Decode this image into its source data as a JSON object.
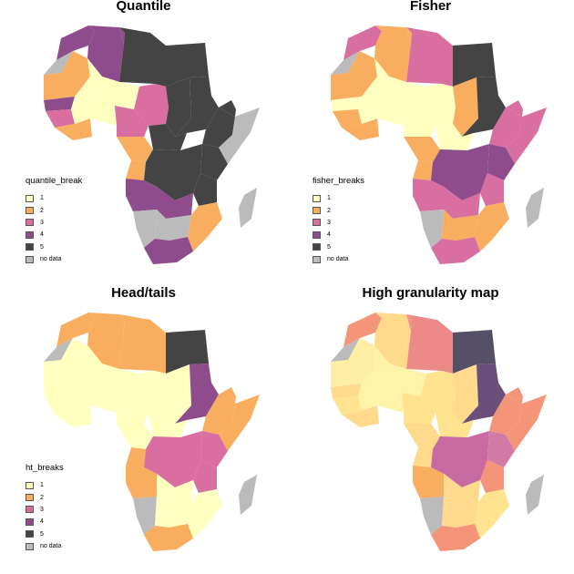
{
  "panels": [
    {
      "title": "Quantile",
      "legend_title": "quantile_break",
      "legend": [
        {
          "label": "1",
          "color": "#FFFFBF"
        },
        {
          "label": "2",
          "color": "#F8AE5E"
        },
        {
          "label": "3",
          "color": "#D96EA0"
        },
        {
          "label": "4",
          "color": "#8F4C8C"
        },
        {
          "label": "5",
          "color": "#444444"
        },
        {
          "label": "no data",
          "color": "#BBBBBB"
        }
      ],
      "regions": {
        "morocco": "#8F4C8C",
        "algeria": "#8F4C8C",
        "tunisia": "#8F4C8C",
        "libya": "#444444",
        "egypt": "#444444",
        "western_sahara": "#BBBBBB",
        "mauritania": "#F8AE5E",
        "mali": "#FFFFBF",
        "niger": "#D96EA0",
        "chad": "#444444",
        "sudan": "#444444",
        "senegal": "#8F4C8C",
        "guinea": "#D96EA0",
        "west_coast": "#F8AE5E",
        "burkina": "#FFFFBF",
        "nigeria": "#D96EA0",
        "car": "#444444",
        "cameroon": "#F8AE5E",
        "ethiopia": "#444444",
        "somalia": "#BBBBBB",
        "horn": "#444444",
        "gabon": "#F8AE5E",
        "drc": "#444444",
        "kenya": "#444444",
        "tanzania": "#444444",
        "angola": "#8F4C8C",
        "zambia": "#8F4C8C",
        "mozambique": "#F8AE5E",
        "namibia": "#BBBBBB",
        "botswana": "#BBBBBB",
        "south_africa": "#8F4C8C",
        "madagascar": "#BBBBBB"
      }
    },
    {
      "title": "Fisher",
      "legend_title": "fisher_breaks",
      "legend": [
        {
          "label": "1",
          "color": "#FFFFBF"
        },
        {
          "label": "2",
          "color": "#F8AE5E"
        },
        {
          "label": "3",
          "color": "#D96EA0"
        },
        {
          "label": "4",
          "color": "#8F4C8C"
        },
        {
          "label": "5",
          "color": "#444444"
        },
        {
          "label": "no data",
          "color": "#BBBBBB"
        }
      ],
      "regions": {
        "morocco": "#D96EA0",
        "algeria": "#F8AE5E",
        "tunisia": "#F8AE5E",
        "libya": "#D96EA0",
        "egypt": "#444444",
        "western_sahara": "#BBBBBB",
        "mauritania": "#F8AE5E",
        "mali": "#FFFFBF",
        "niger": "#FFFFBF",
        "chad": "#F8AE5E",
        "sudan": "#444444",
        "senegal": "#FFFFBF",
        "guinea": "#F8AE5E",
        "west_coast": "#F8AE5E",
        "burkina": "#FFFFBF",
        "nigeria": "#FFFFBF",
        "car": "#FFFFBF",
        "cameroon": "#F8AE5E",
        "ethiopia": "#D96EA0",
        "somalia": "#D96EA0",
        "horn": "#D96EA0",
        "gabon": "#F8AE5E",
        "drc": "#8F4C8C",
        "kenya": "#8F4C8C",
        "tanzania": "#D96EA0",
        "angola": "#D96EA0",
        "zambia": "#D96EA0",
        "mozambique": "#F8AE5E",
        "namibia": "#BBBBBB",
        "botswana": "#F8AE5E",
        "south_africa": "#D96EA0",
        "madagascar": "#BBBBBB"
      }
    },
    {
      "title": "Head/tails",
      "legend_title": "ht_breaks",
      "legend": [
        {
          "label": "1",
          "color": "#FFFFBF"
        },
        {
          "label": "2",
          "color": "#F8AE5E"
        },
        {
          "label": "3",
          "color": "#D96EA0"
        },
        {
          "label": "4",
          "color": "#8F4C8C"
        },
        {
          "label": "5",
          "color": "#444444"
        },
        {
          "label": "no data",
          "color": "#BBBBBB"
        }
      ],
      "regions": {
        "morocco": "#F8AE5E",
        "algeria": "#F8AE5E",
        "tunisia": "#F8AE5E",
        "libya": "#F8AE5E",
        "egypt": "#444444",
        "western_sahara": "#BBBBBB",
        "mauritania": "#FFFFBF",
        "mali": "#FFFFBF",
        "niger": "#FFFFBF",
        "chad": "#FFFFBF",
        "sudan": "#8F4C8C",
        "senegal": "#FFFFBF",
        "guinea": "#FFFFBF",
        "west_coast": "#FFFFBF",
        "burkina": "#FFFFBF",
        "nigeria": "#FFFFBF",
        "car": "#FFFFBF",
        "cameroon": "#FFFFBF",
        "ethiopia": "#F8AE5E",
        "somalia": "#F8AE5E",
        "horn": "#F8AE5E",
        "gabon": "#F8AE5E",
        "drc": "#D96EA0",
        "kenya": "#D96EA0",
        "tanzania": "#D96EA0",
        "angola": "#F8AE5E",
        "zambia": "#FFFFBF",
        "mozambique": "#FFFFBF",
        "namibia": "#BBBBBB",
        "botswana": "#FFFFBF",
        "south_africa": "#F8AE5E",
        "madagascar": "#BBBBBB"
      }
    },
    {
      "title": "High granularity map",
      "legend_title": "",
      "legend": [],
      "regions": {
        "morocco": "#F4957A",
        "algeria": "#FFD98C",
        "tunisia": "#F4957A",
        "libya": "#EC8A88",
        "egypt": "#555068",
        "western_sahara": "#BBBBBB",
        "mauritania": "#FFEFA5",
        "mali": "#FFF3A8",
        "niger": "#FFE38F",
        "chad": "#FFD98C",
        "sudan": "#6A4F7A",
        "senegal": "#FFD98C",
        "guinea": "#FFE38F",
        "west_coast": "#FFD98C",
        "burkina": "#FFF3A8",
        "nigeria": "#FFE38F",
        "car": "#FFE38F",
        "cameroon": "#FFD98C",
        "ethiopia": "#F4957A",
        "somalia": "#F4957A",
        "horn": "#F4957A",
        "gabon": "#FFD98C",
        "drc": "#C96AA3",
        "kenya": "#D07AA5",
        "tanzania": "#F4957A",
        "angola": "#F8AE5E",
        "zambia": "#FFD98C",
        "mozambique": "#FFE38F",
        "namibia": "#BBBBBB",
        "botswana": "#FFD98C",
        "south_africa": "#F4957A",
        "madagascar": "#BBBBBB"
      }
    }
  ]
}
